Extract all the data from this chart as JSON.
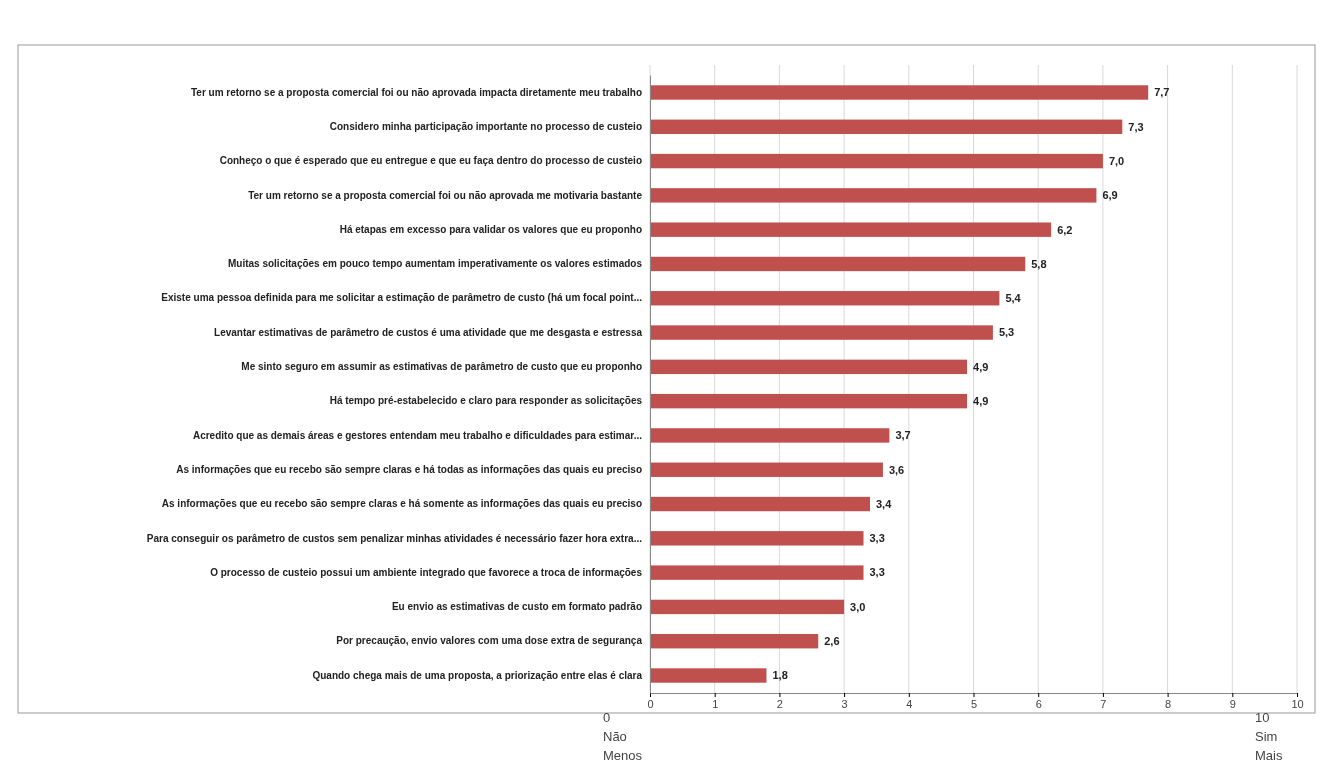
{
  "chart_data": {
    "type": "bar",
    "orientation": "horizontal",
    "categories": [
      "Ter um retorno se a proposta comercial foi ou não aprovada impacta diretamente meu trabalho",
      "Considero minha participação importante no processo de custeio",
      "Conheço o que é esperado que eu entregue e que eu faça dentro do processo de custeio",
      "Ter um retorno se a proposta comercial foi ou não aprovada me motivaria bastante",
      "Há etapas em excesso para validar os valores que eu proponho",
      "Muitas solicitações em pouco tempo aumentam imperativamente os valores estimados",
      "Existe uma pessoa definida para me solicitar a estimação de parâmetro de custo (há um focal point...",
      "Levantar estimativas de parâmetro de custos é uma atividade que me desgasta e estressa",
      "Me sinto seguro em assumir as estimativas de parâmetro de custo que eu proponho",
      "Há tempo pré-estabelecido e claro para responder as solicitações",
      "Acredito que as demais áreas e gestores entendam meu trabalho e dificuldades para estimar...",
      "As informações que eu recebo são sempre claras e há todas as informações das quais eu preciso",
      "As informações que eu recebo são sempre claras e há somente as informações das quais eu preciso",
      "Para conseguir os parâmetro de custos sem penalizar minhas atividades é necessário fazer hora extra...",
      "O processo de custeio possui um ambiente integrado que favorece a troca de informações",
      "Eu envio as estimativas de custo em formato padrão",
      "Por precaução, envio valores com uma dose extra de segurança",
      "Quando chega mais de uma proposta, a priorização entre elas é clara"
    ],
    "values": [
      7.7,
      7.3,
      7.0,
      6.9,
      6.2,
      5.8,
      5.4,
      5.3,
      4.9,
      4.9,
      3.7,
      3.6,
      3.4,
      3.3,
      3.3,
      3.0,
      2.6,
      1.8
    ],
    "value_labels": [
      "7,7",
      "7,3",
      "7,0",
      "6,9",
      "6,2",
      "5,8",
      "5,4",
      "5,3",
      "4,9",
      "4,9",
      "3,7",
      "3,6",
      "3,4",
      "3,3",
      "3,3",
      "3,0",
      "2,6",
      "1,8"
    ],
    "color": "#c0504d",
    "xlim": [
      0,
      10
    ],
    "xticks": [
      0,
      1,
      2,
      3,
      4,
      5,
      6,
      7,
      8,
      9,
      10
    ],
    "grid": "x",
    "annotations": [
      "0",
      "Não",
      "Menos",
      "10",
      "Sim",
      "Mais"
    ]
  }
}
